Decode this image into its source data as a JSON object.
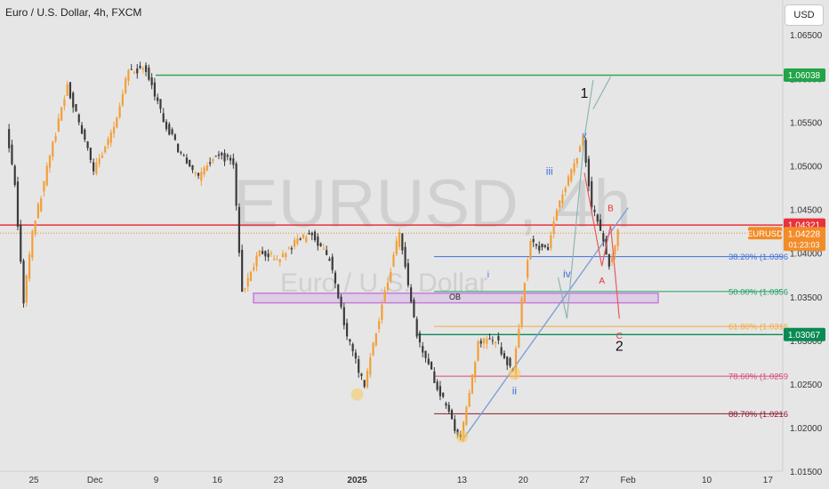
{
  "header": {
    "title": "Euro / U.S. Dollar, 4h, FXCM",
    "currency_button": "USD"
  },
  "watermark": {
    "symbol": "EURUSD, 4h",
    "name": "Euro / U.S. Dollar"
  },
  "chart_data": {
    "type": "candlestick",
    "symbol": "EURUSD",
    "timeframe": "4h",
    "y_ticks": [
      1.065,
      1.06,
      1.055,
      1.05,
      1.045,
      1.04,
      1.035,
      1.03,
      1.025,
      1.02,
      1.015
    ],
    "y_tick_labels": [
      "1.06500",
      "1.06000",
      "1.05500",
      "1.05000",
      "1.04500",
      "1.04000",
      "1.03500",
      "1.03000",
      "1.02500",
      "1.02000",
      "1.01500"
    ],
    "ylim": [
      1.0125,
      1.0675
    ],
    "x_labels": [
      {
        "label": "25",
        "date": "2024-11-25",
        "bold": false
      },
      {
        "label": "Dec",
        "date": "2024-12-02",
        "bold": false
      },
      {
        "label": "9",
        "date": "2024-12-09",
        "bold": false
      },
      {
        "label": "16",
        "date": "2024-12-16",
        "bold": false
      },
      {
        "label": "23",
        "date": "2024-12-23",
        "bold": false
      },
      {
        "label": "2025",
        "date": "2025-01-01",
        "bold": true
      },
      {
        "label": "13",
        "date": "2025-01-13",
        "bold": false
      },
      {
        "label": "20",
        "date": "2025-01-20",
        "bold": false
      },
      {
        "label": "27",
        "date": "2025-01-27",
        "bold": false
      },
      {
        "label": "Feb",
        "date": "2025-02-01",
        "bold": false
      },
      {
        "label": "10",
        "date": "2025-02-10",
        "bold": false
      },
      {
        "label": "17",
        "date": "2025-02-17",
        "bold": false
      }
    ],
    "price_path": [
      {
        "date": "2024-11-22",
        "price": 1.0542
      },
      {
        "date": "2024-11-23",
        "price": 1.0478
      },
      {
        "date": "2024-11-24",
        "price": 1.0345
      },
      {
        "date": "2024-11-25",
        "price": 1.0422
      },
      {
        "date": "2024-11-27",
        "price": 1.0512
      },
      {
        "date": "2024-11-29",
        "price": 1.0592
      },
      {
        "date": "2024-12-02",
        "price": 1.0495
      },
      {
        "date": "2024-12-04",
        "price": 1.0535
      },
      {
        "date": "2024-12-06",
        "price": 1.0608
      },
      {
        "date": "2024-12-08",
        "price": 1.0612
      },
      {
        "date": "2024-12-10",
        "price": 1.0552
      },
      {
        "date": "2024-12-12",
        "price": 1.0512
      },
      {
        "date": "2024-12-14",
        "price": 1.0484
      },
      {
        "date": "2024-12-16",
        "price": 1.0515
      },
      {
        "date": "2024-12-18",
        "price": 1.0502
      },
      {
        "date": "2024-12-19",
        "price": 1.0355
      },
      {
        "date": "2024-12-21",
        "price": 1.0405
      },
      {
        "date": "2024-12-23",
        "price": 1.0392
      },
      {
        "date": "2024-12-25",
        "price": 1.0412
      },
      {
        "date": "2024-12-27",
        "price": 1.0422
      },
      {
        "date": "2024-12-29",
        "price": 1.0392
      },
      {
        "date": "2024-12-31",
        "price": 1.0305
      },
      {
        "date": "2025-01-02",
        "price": 1.0245
      },
      {
        "date": "2025-01-03",
        "price": 1.0298
      },
      {
        "date": "2025-01-06",
        "price": 1.0425
      },
      {
        "date": "2025-01-08",
        "price": 1.0305
      },
      {
        "date": "2025-01-10",
        "price": 1.0255
      },
      {
        "date": "2025-01-13",
        "price": 1.0185
      },
      {
        "date": "2025-01-15",
        "price": 1.0295
      },
      {
        "date": "2025-01-17",
        "price": 1.0302
      },
      {
        "date": "2025-01-19",
        "price": 1.0262
      },
      {
        "date": "2025-01-20",
        "price": 1.0345
      },
      {
        "date": "2025-01-21",
        "price": 1.0412
      },
      {
        "date": "2025-01-23",
        "price": 1.0402
      },
      {
        "date": "2025-01-24",
        "price": 1.0452
      },
      {
        "date": "2025-01-26",
        "price": 1.0502
      },
      {
        "date": "2025-01-27",
        "price": 1.0532
      },
      {
        "date": "2025-01-28",
        "price": 1.0452
      },
      {
        "date": "2025-01-29",
        "price": 1.0425
      },
      {
        "date": "2025-01-30",
        "price": 1.0385
      },
      {
        "date": "2025-01-31",
        "price": 1.0423
      }
    ],
    "current_price": {
      "symbol": "EURUSD",
      "price": "1.04228",
      "countdown": "01:23:03",
      "value": 1.04228
    },
    "horizontal_lines": [
      {
        "label": "1.06038",
        "value": 1.06038,
        "color": "#22a447"
      },
      {
        "label": "1.04321",
        "value": 1.04321,
        "color": "#e8323b"
      },
      {
        "label": "1.03067",
        "value": 1.03067,
        "color": "#0a8a55"
      }
    ],
    "fib_levels": [
      {
        "label": "38.20% (1.0396",
        "value": 1.0396,
        "color": "#3d6fd8"
      },
      {
        "label": "50.00% (1.0356",
        "value": 1.0356,
        "color": "#1f9e62"
      },
      {
        "label": "61.80% (1.0316",
        "value": 1.0316,
        "color": "#f2a93b"
      },
      {
        "label": "78.60% (1.0259",
        "value": 1.0259,
        "color": "#d9467b"
      },
      {
        "label": "88.70% (1.0216",
        "value": 1.0216,
        "color": "#8e1b2c"
      }
    ],
    "order_block": {
      "label": "OB",
      "top": 1.0354,
      "bottom": 1.0343,
      "color": "#c07ad6"
    },
    "wave_labels": [
      {
        "text": "1",
        "date": "2025-01-27",
        "price": 1.0578,
        "color": "#111111"
      },
      {
        "text": "2",
        "date": "2025-01-31",
        "price": 1.0288,
        "color": "#111111"
      },
      {
        "text": "v",
        "date": "2025-01-27",
        "price": 1.0532,
        "color": "#3d6fd8"
      },
      {
        "text": "iii",
        "date": "2025-01-23",
        "price": 1.049,
        "color": "#3d6fd8"
      },
      {
        "text": "iv",
        "date": "2025-01-25",
        "price": 1.0372,
        "color": "#3d6fd8"
      },
      {
        "text": "i",
        "date": "2025-01-16",
        "price": 1.0372,
        "color": "#3d6fd8"
      },
      {
        "text": "ii",
        "date": "2025-01-19",
        "price": 1.0238,
        "color": "#3d6fd8"
      },
      {
        "text": "B",
        "date": "2025-01-30",
        "price": 1.0448,
        "color": "#e8323b"
      },
      {
        "text": "A",
        "date": "2025-01-29",
        "price": 1.0365,
        "color": "#e8323b"
      },
      {
        "text": "C",
        "date": "2025-01-31",
        "price": 1.0302,
        "color": "#e8323b"
      }
    ],
    "circle_markers": [
      {
        "date": "2025-01-01",
        "price": 1.0238
      },
      {
        "date": "2025-01-13",
        "price": 1.019
      },
      {
        "date": "2025-01-19",
        "price": 1.0262
      }
    ],
    "colors": {
      "up": "#f29f38",
      "down": "#3b3b3b",
      "background": "#e6e6e6"
    }
  }
}
